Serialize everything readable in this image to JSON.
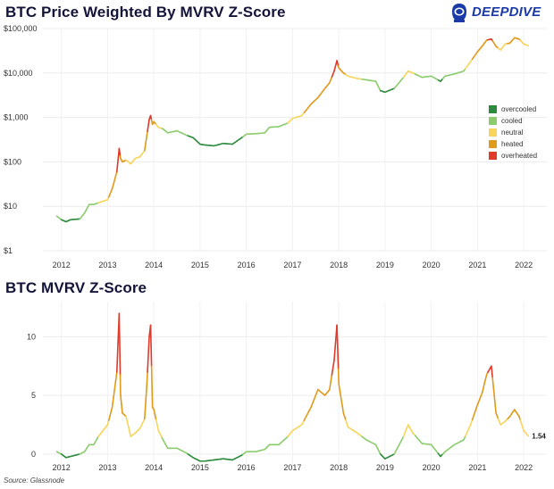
{
  "header": {
    "title_top": "BTC Price Weighted By MVRV Z-Score",
    "title_bottom": "BTC MVRV Z-Score",
    "logo_text": "DEEPDIVE",
    "logo_icon": "astronaut-helmet-icon",
    "source": "Source: Glassnode"
  },
  "colors": {
    "overcooled": "#2e8b3e",
    "cooled": "#8ccc6e",
    "neutral": "#f7d55c",
    "heated": "#e09a1c",
    "overheated": "#e03a2a"
  },
  "chart_data": [
    {
      "type": "line",
      "title": "BTC Price Weighted By MVRV Z-Score",
      "scale": "log",
      "ylim": [
        1,
        100000
      ],
      "y_ticks": [
        1,
        10,
        100,
        1000,
        10000,
        100000
      ],
      "y_tick_labels": [
        "$1",
        "$10",
        "$100",
        "$1,000",
        "$10,000",
        "$100,000"
      ],
      "x_ticks": [
        "2012",
        "2013",
        "2014",
        "2015",
        "2016",
        "2017",
        "2018",
        "2019",
        "2020",
        "2021",
        "2022"
      ],
      "x_range": [
        2011.6,
        2022.5
      ],
      "legend": {
        "placement": "right",
        "entries": [
          "overcooled",
          "cooled",
          "neutral",
          "heated",
          "overheated"
        ]
      },
      "series": [
        {
          "x": [
            2011.9,
            2012.0,
            2012.1,
            2012.2,
            2012.4,
            2012.5,
            2012.6,
            2012.7,
            2012.8,
            2012.9,
            2013.0,
            2013.1,
            2013.2,
            2013.25,
            2013.28,
            2013.32,
            2013.4,
            2013.5,
            2013.6,
            2013.7,
            2013.8,
            2013.85,
            2013.9,
            2013.93,
            2013.97,
            2014.0,
            2014.1,
            2014.2,
            2014.3,
            2014.5,
            2014.7,
            2014.85,
            2015.0,
            2015.1,
            2015.3,
            2015.5,
            2015.7,
            2015.9,
            2016.0,
            2016.2,
            2016.4,
            2016.5,
            2016.7,
            2016.9,
            2017.0,
            2017.2,
            2017.4,
            2017.55,
            2017.7,
            2017.8,
            2017.9,
            2017.96,
            2018.0,
            2018.1,
            2018.2,
            2018.4,
            2018.6,
            2018.8,
            2018.9,
            2019.0,
            2019.2,
            2019.4,
            2019.5,
            2019.6,
            2019.8,
            2020.0,
            2020.2,
            2020.3,
            2020.5,
            2020.7,
            2020.85,
            2021.0,
            2021.1,
            2021.2,
            2021.3,
            2021.4,
            2021.5,
            2021.6,
            2021.7,
            2021.8,
            2021.9,
            2022.0,
            2022.1
          ],
          "y": [
            6,
            5,
            4.5,
            5,
            5.2,
            7,
            11,
            11,
            12,
            13,
            14,
            25,
            60,
            200,
            120,
            100,
            110,
            90,
            120,
            130,
            180,
            400,
            900,
            1100,
            700,
            800,
            600,
            550,
            450,
            500,
            400,
            350,
            250,
            240,
            230,
            260,
            250,
            350,
            420,
            430,
            450,
            600,
            620,
            750,
            950,
            1100,
            2000,
            2800,
            4500,
            6000,
            11000,
            19000,
            13000,
            10000,
            8500,
            7500,
            7000,
            6500,
            4000,
            3700,
            4500,
            8000,
            11000,
            10000,
            8000,
            8500,
            6500,
            8500,
            9500,
            11000,
            18000,
            30000,
            40000,
            55000,
            58000,
            40000,
            33000,
            45000,
            47000,
            62000,
            58000,
            45000,
            41000
          ],
          "z": [
            0.2,
            0,
            -0.3,
            -0.2,
            0,
            0.2,
            0.8,
            0.8,
            1.5,
            2,
            2.5,
            4,
            7,
            12,
            5,
            3.5,
            3.2,
            1.5,
            1.8,
            2.2,
            3,
            6,
            10,
            11,
            4,
            3.8,
            2,
            1.2,
            0.5,
            0.5,
            0.1,
            -0.3,
            -0.6,
            -0.6,
            -0.5,
            -0.4,
            -0.5,
            -0.1,
            0.2,
            0.2,
            0.4,
            0.8,
            0.8,
            1.5,
            2,
            2.5,
            4,
            5.5,
            5,
            5.5,
            8,
            11,
            6,
            3.5,
            2.3,
            1.8,
            1.2,
            0.8,
            0,
            -0.4,
            0,
            1.5,
            2.5,
            1.8,
            0.9,
            0.8,
            -0.2,
            0.2,
            0.8,
            1.2,
            2.5,
            4.2,
            5.2,
            6.8,
            7.5,
            3.5,
            2.5,
            2.8,
            3.2,
            3.8,
            3.2,
            2,
            1.54
          ]
        }
      ]
    },
    {
      "type": "line",
      "title": "BTC MVRV Z-Score",
      "ylim": [
        -1,
        13
      ],
      "y_ticks": [
        0,
        5,
        10
      ],
      "y_tick_labels": [
        "0",
        "5",
        "10"
      ],
      "x_ticks": [
        "2012",
        "2013",
        "2014",
        "2015",
        "2016",
        "2017",
        "2018",
        "2019",
        "2020",
        "2021",
        "2022"
      ],
      "x_range": [
        2011.6,
        2022.5
      ],
      "last_value_label": "1.54"
    }
  ]
}
